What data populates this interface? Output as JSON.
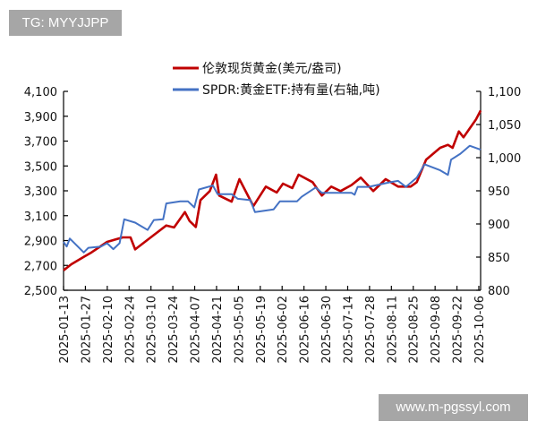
{
  "watermarks": {
    "top_left": "TG: MYYJJPP",
    "bottom_right": "www.m-pgssyl.com"
  },
  "chart_data": {
    "type": "line",
    "title": "",
    "legend_position": "top-center",
    "grid": false,
    "x_ticks": [
      "2025-01-13",
      "2025-01-27",
      "2025-02-10",
      "2025-02-24",
      "2025-03-10",
      "2025-03-24",
      "2025-04-07",
      "2025-04-21",
      "2025-05-05",
      "2025-05-19",
      "2025-06-02",
      "2025-06-16",
      "2025-06-30",
      "2025-07-14",
      "2025-07-28",
      "2025-08-11",
      "2025-08-25",
      "2025-09-08",
      "2025-09-22",
      "2025-10-06"
    ],
    "x_range": [
      "2025-01-13",
      "2025-10-08"
    ],
    "left_axis": {
      "range": [
        2500,
        4100
      ],
      "ticks": [
        "2,500",
        "2,700",
        "2,900",
        "3,100",
        "3,300",
        "3,500",
        "3,700",
        "3,900",
        "4,100"
      ]
    },
    "right_axis": {
      "range": [
        800,
        1100
      ],
      "ticks": [
        "800",
        "850",
        "900",
        "950",
        "1,000",
        "1,050",
        "1,100"
      ]
    },
    "series": [
      {
        "name": "伦敦现货黄金(美元/盎司)",
        "axis": "left",
        "color": "#c00000",
        "points": [
          [
            "2025-01-13",
            2660
          ],
          [
            "2025-01-18",
            2709
          ],
          [
            "2025-01-26",
            2769
          ],
          [
            "2025-01-31",
            2805
          ],
          [
            "2025-02-10",
            2889
          ],
          [
            "2025-02-20",
            2925
          ],
          [
            "2025-02-25",
            2925
          ],
          [
            "2025-02-28",
            2829
          ],
          [
            "2025-03-10",
            2925
          ],
          [
            "2025-03-20",
            3021
          ],
          [
            "2025-03-25",
            3005
          ],
          [
            "2025-04-01",
            3129
          ],
          [
            "2025-04-04",
            3057
          ],
          [
            "2025-04-08",
            3009
          ],
          [
            "2025-04-11",
            3225
          ],
          [
            "2025-04-17",
            3298
          ],
          [
            "2025-04-21",
            3430
          ],
          [
            "2025-04-23",
            3262
          ],
          [
            "2025-05-01",
            3213
          ],
          [
            "2025-05-06",
            3394
          ],
          [
            "2025-05-15",
            3177
          ],
          [
            "2025-05-23",
            3334
          ],
          [
            "2025-05-30",
            3286
          ],
          [
            "2025-06-03",
            3358
          ],
          [
            "2025-06-09",
            3322
          ],
          [
            "2025-06-13",
            3430
          ],
          [
            "2025-06-22",
            3370
          ],
          [
            "2025-06-28",
            3262
          ],
          [
            "2025-07-04",
            3334
          ],
          [
            "2025-07-10",
            3298
          ],
          [
            "2025-07-17",
            3346
          ],
          [
            "2025-07-23",
            3406
          ],
          [
            "2025-07-31",
            3298
          ],
          [
            "2025-08-08",
            3394
          ],
          [
            "2025-08-16",
            3334
          ],
          [
            "2025-08-24",
            3334
          ],
          [
            "2025-08-28",
            3370
          ],
          [
            "2025-09-03",
            3550
          ],
          [
            "2025-09-12",
            3646
          ],
          [
            "2025-09-17",
            3670
          ],
          [
            "2025-09-20",
            3646
          ],
          [
            "2025-09-24",
            3778
          ],
          [
            "2025-09-27",
            3730
          ],
          [
            "2025-10-05",
            3874
          ],
          [
            "2025-10-08",
            3946
          ]
        ]
      },
      {
        "name": "SPDR:黄金ETF:持有量(右轴,吨)",
        "axis": "right",
        "color": "#4472c4",
        "points": [
          [
            "2025-01-13",
            873
          ],
          [
            "2025-01-15",
            866
          ],
          [
            "2025-01-17",
            878
          ],
          [
            "2025-01-26",
            857
          ],
          [
            "2025-01-29",
            864
          ],
          [
            "2025-02-06",
            866
          ],
          [
            "2025-02-10",
            871
          ],
          [
            "2025-02-14",
            862
          ],
          [
            "2025-02-18",
            871
          ],
          [
            "2025-02-21",
            907
          ],
          [
            "2025-02-28",
            902
          ],
          [
            "2025-03-08",
            891
          ],
          [
            "2025-03-12",
            906
          ],
          [
            "2025-03-18",
            907
          ],
          [
            "2025-03-20",
            931
          ],
          [
            "2025-03-29",
            934
          ],
          [
            "2025-04-03",
            934
          ],
          [
            "2025-04-07",
            925
          ],
          [
            "2025-04-10",
            952
          ],
          [
            "2025-04-19",
            958
          ],
          [
            "2025-04-22",
            945
          ],
          [
            "2025-05-01",
            945
          ],
          [
            "2025-05-05",
            938
          ],
          [
            "2025-05-13",
            936
          ],
          [
            "2025-05-16",
            918
          ],
          [
            "2025-05-28",
            922
          ],
          [
            "2025-06-01",
            934
          ],
          [
            "2025-06-12",
            934
          ],
          [
            "2025-06-15",
            941
          ],
          [
            "2025-06-24",
            955
          ],
          [
            "2025-06-28",
            947
          ],
          [
            "2025-07-17",
            947
          ],
          [
            "2025-07-19",
            944
          ],
          [
            "2025-07-21",
            956
          ],
          [
            "2025-07-28",
            956
          ],
          [
            "2025-08-11",
            963
          ],
          [
            "2025-08-16",
            965
          ],
          [
            "2025-08-21",
            956
          ],
          [
            "2025-08-28",
            970
          ],
          [
            "2025-09-02",
            990
          ],
          [
            "2025-09-12",
            981
          ],
          [
            "2025-09-17",
            974
          ],
          [
            "2025-09-19",
            997
          ],
          [
            "2025-09-25",
            1006
          ],
          [
            "2025-10-01",
            1018
          ],
          [
            "2025-10-08",
            1012
          ]
        ]
      }
    ]
  }
}
